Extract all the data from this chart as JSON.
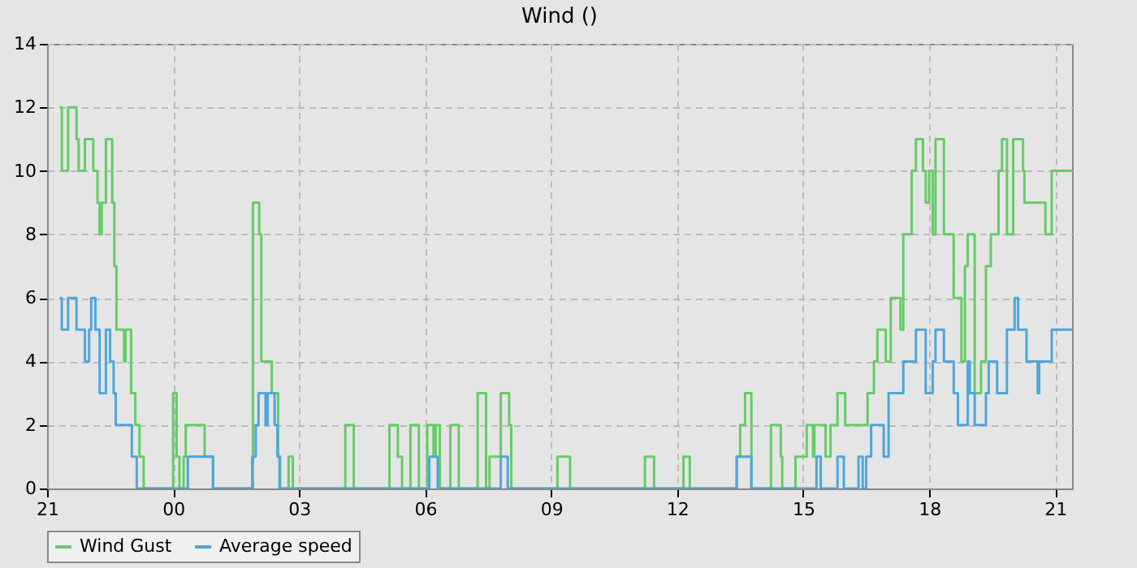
{
  "chart_data": {
    "type": "step",
    "title": "Wind ()",
    "xlim": [
      "--01-01T21:00",
      "--01-02T21:24"
    ],
    "xticks": [
      {
        "value": "--01-01T21:00",
        "label": "21"
      },
      {
        "value": "--01-02T00:00",
        "label": "00"
      },
      {
        "value": "--01-02T03:00",
        "label": "03"
      },
      {
        "value": "--01-02T06:00",
        "label": "06"
      },
      {
        "value": "--01-02T09:00",
        "label": "09"
      },
      {
        "value": "--01-02T12:00",
        "label": "12"
      },
      {
        "value": "--01-02T15:00",
        "label": "15"
      },
      {
        "value": "--01-02T18:00",
        "label": "18"
      },
      {
        "value": "--01-02T21:00",
        "label": "21"
      }
    ],
    "ylim": [
      0,
      14
    ],
    "yticks": [
      0,
      2,
      4,
      6,
      8,
      10,
      12,
      14
    ],
    "grid": true,
    "legend": "bottom",
    "marker": "none",
    "line_style": "solid",
    "series": [
      {
        "name": "Wind Gust",
        "color": "#66cc66",
        "x": [
          "--01-01T21:18",
          "--01-01T21:21",
          "--01-01T21:30",
          "--01-01T21:42",
          "--01-01T21:45",
          "--01-01T21:54",
          "--01-01T22:06",
          "--01-01T22:12",
          "--01-01T22:15",
          "--01-01T22:18",
          "--01-01T22:24",
          "--01-01T22:33",
          "--01-01T22:36",
          "--01-01T22:39",
          "--01-01T22:50",
          "--01-01T22:52",
          "--01-01T23:00",
          "--01-01T23:06",
          "--01-01T23:12",
          "--01-01T23:18",
          "--01-02T00:00",
          "--01-02T00:05",
          "--01-02T00:09",
          "--01-02T00:15",
          "--01-02T00:18",
          "--01-02T00:45",
          "--01-02T00:57",
          "--01-02T01:54",
          "--01-02T02:03",
          "--01-02T02:06",
          "--01-02T02:21",
          "--01-02T02:30",
          "--01-02T02:33",
          "--01-02T02:45",
          "--01-02T02:51",
          "--01-02T04:06",
          "--01-02T04:18",
          "--01-02T05:09",
          "--01-02T05:21",
          "--01-02T05:27",
          "--01-02T05:39",
          "--01-02T05:51",
          "--01-02T06:03",
          "--01-02T06:12",
          "--01-02T06:15",
          "--01-02T06:21",
          "--01-02T06:36",
          "--01-02T06:48",
          "--01-02T07:15",
          "--01-02T07:27",
          "--01-02T07:32",
          "--01-02T07:48",
          "--01-02T08:00",
          "--01-02T08:03",
          "--01-02T09:09",
          "--01-02T09:27",
          "--01-02T11:14",
          "--01-02T11:27",
          "--01-02T12:09",
          "--01-02T12:18",
          "--01-02T13:25",
          "--01-02T13:30",
          "--01-02T13:37",
          "--01-02T13:46",
          "--01-02T14:14",
          "--01-02T14:28",
          "--01-02T14:30",
          "--01-02T14:49",
          "--01-02T15:05",
          "--01-02T15:14",
          "--01-02T15:16",
          "--01-02T15:32",
          "--01-02T15:39",
          "--01-02T15:49",
          "--01-02T16:00",
          "--01-02T16:32",
          "--01-02T16:41",
          "--01-02T16:46",
          "--01-02T16:58",
          "--01-02T17:05",
          "--01-02T17:19",
          "--01-02T17:23",
          "--01-02T17:35",
          "--01-02T17:41",
          "--01-02T17:51",
          "--01-02T17:55",
          "--01-02T18:00",
          "--01-02T18:05",
          "--01-02T18:09",
          "--01-02T18:21",
          "--01-02T18:35",
          "--01-02T18:46",
          "--01-02T18:51",
          "--01-02T18:55",
          "--01-02T19:05",
          "--01-02T19:14",
          "--01-02T19:21",
          "--01-02T19:28",
          "--01-02T19:39",
          "--01-02T19:44",
          "--01-02T19:51",
          "--01-02T20:00",
          "--01-02T20:14",
          "--01-02T20:16",
          "--01-02T20:46",
          "--01-02T20:55",
          "--01-02T21:24"
        ],
        "values": [
          12,
          10,
          12,
          11,
          10,
          11,
          10,
          9,
          8,
          9,
          11,
          9,
          7,
          5,
          4,
          5,
          3,
          2,
          1,
          0,
          3,
          1,
          0,
          1,
          2,
          1,
          0,
          9,
          8,
          4,
          3,
          1,
          0,
          1,
          0,
          2,
          0,
          2,
          1,
          0,
          2,
          0,
          2,
          1,
          2,
          0,
          2,
          0,
          3,
          0,
          1,
          3,
          2,
          0,
          1,
          0,
          1,
          0,
          1,
          0,
          1,
          2,
          3,
          0,
          2,
          1,
          0,
          1,
          2,
          1,
          2,
          1,
          2,
          3,
          2,
          3,
          4,
          5,
          4,
          6,
          5,
          8,
          10,
          11,
          10,
          9,
          10,
          8,
          11,
          8,
          6,
          4,
          7,
          8,
          3,
          4,
          7,
          8,
          10,
          11,
          8,
          11,
          10,
          9,
          8,
          10,
          10
        ]
      },
      {
        "name": "Average speed",
        "color": "#4ea6dc",
        "x": [
          "--01-01T21:18",
          "--01-01T21:21",
          "--01-01T21:30",
          "--01-01T21:42",
          "--01-01T21:54",
          "--01-01T22:00",
          "--01-01T22:03",
          "--01-01T22:09",
          "--01-01T22:15",
          "--01-01T22:24",
          "--01-01T22:30",
          "--01-01T22:35",
          "--01-01T22:38",
          "--01-01T23:01",
          "--01-01T23:08",
          "--01-02T00:21",
          "--01-02T00:57",
          "--01-02T01:53",
          "--01-02T01:58",
          "--01-02T02:02",
          "--01-02T02:12",
          "--01-02T02:15",
          "--01-02T02:25",
          "--01-02T02:29",
          "--01-02T02:32",
          "--01-02T06:06",
          "--01-02T06:18",
          "--01-02T07:48",
          "--01-02T07:58",
          "--01-02T13:25",
          "--01-02T13:46",
          "--01-02T15:19",
          "--01-02T15:25",
          "--01-02T15:49",
          "--01-02T15:58",
          "--01-02T16:19",
          "--01-02T16:25",
          "--01-02T16:30",
          "--01-02T16:37",
          "--01-02T16:55",
          "--01-02T17:02",
          "--01-02T17:23",
          "--01-02T17:41",
          "--01-02T17:55",
          "--01-02T18:05",
          "--01-02T18:09",
          "--01-02T18:21",
          "--01-02T18:35",
          "--01-02T18:41",
          "--01-02T18:55",
          "--01-02T18:58",
          "--01-02T19:05",
          "--01-02T19:21",
          "--01-02T19:25",
          "--01-02T19:37",
          "--01-02T19:51",
          "--01-02T20:02",
          "--01-02T20:07",
          "--01-02T20:19",
          "--01-02T20:35",
          "--01-02T20:37",
          "--01-02T20:55",
          "--01-02T21:24"
        ],
        "values": [
          6,
          5,
          6,
          5,
          4,
          5,
          6,
          5,
          3,
          5,
          4,
          3,
          2,
          1,
          0,
          1,
          0,
          1,
          2,
          3,
          2,
          3,
          2,
          1,
          0,
          1,
          0,
          1,
          0,
          1,
          0,
          1,
          0,
          1,
          0,
          1,
          0,
          1,
          2,
          1,
          3,
          4,
          5,
          3,
          4,
          5,
          4,
          3,
          2,
          4,
          3,
          2,
          3,
          4,
          3,
          5,
          6,
          5,
          4,
          3,
          4,
          5,
          5
        ]
      }
    ]
  }
}
